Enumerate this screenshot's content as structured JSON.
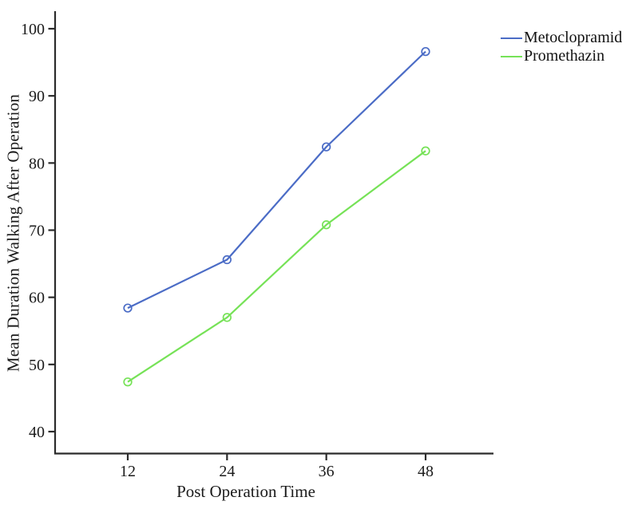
{
  "figure": {
    "background": "#ffffff"
  },
  "chart_data": {
    "type": "line",
    "title": "",
    "xlabel": "Post Operation Time",
    "ylabel": "Mean Duration Walking After Operation",
    "x": [
      12,
      24,
      36,
      48
    ],
    "x_tick_labels": [
      "12",
      "24",
      "36",
      "48"
    ],
    "y_ticks": [
      40,
      50,
      60,
      70,
      80,
      90,
      100
    ],
    "y_tick_labels": [
      "40",
      "50",
      "60",
      "70",
      "80",
      "90",
      "100"
    ],
    "xlim": [
      3.3,
      56.2
    ],
    "ylim": [
      36.8,
      102.6
    ],
    "grid": false,
    "marker": "open-circle",
    "legend_position": "top-right-outside",
    "axis_color": "#2b2b2b",
    "text_color": "#1b1b1b",
    "series": [
      {
        "name": "Metoclopramid",
        "color": "#4b6cc6",
        "values": [
          58.4,
          65.6,
          82.4,
          96.6
        ]
      },
      {
        "name": "Promethazin",
        "color": "#76e257",
        "values": [
          47.4,
          57.0,
          70.8,
          81.8
        ]
      }
    ]
  }
}
